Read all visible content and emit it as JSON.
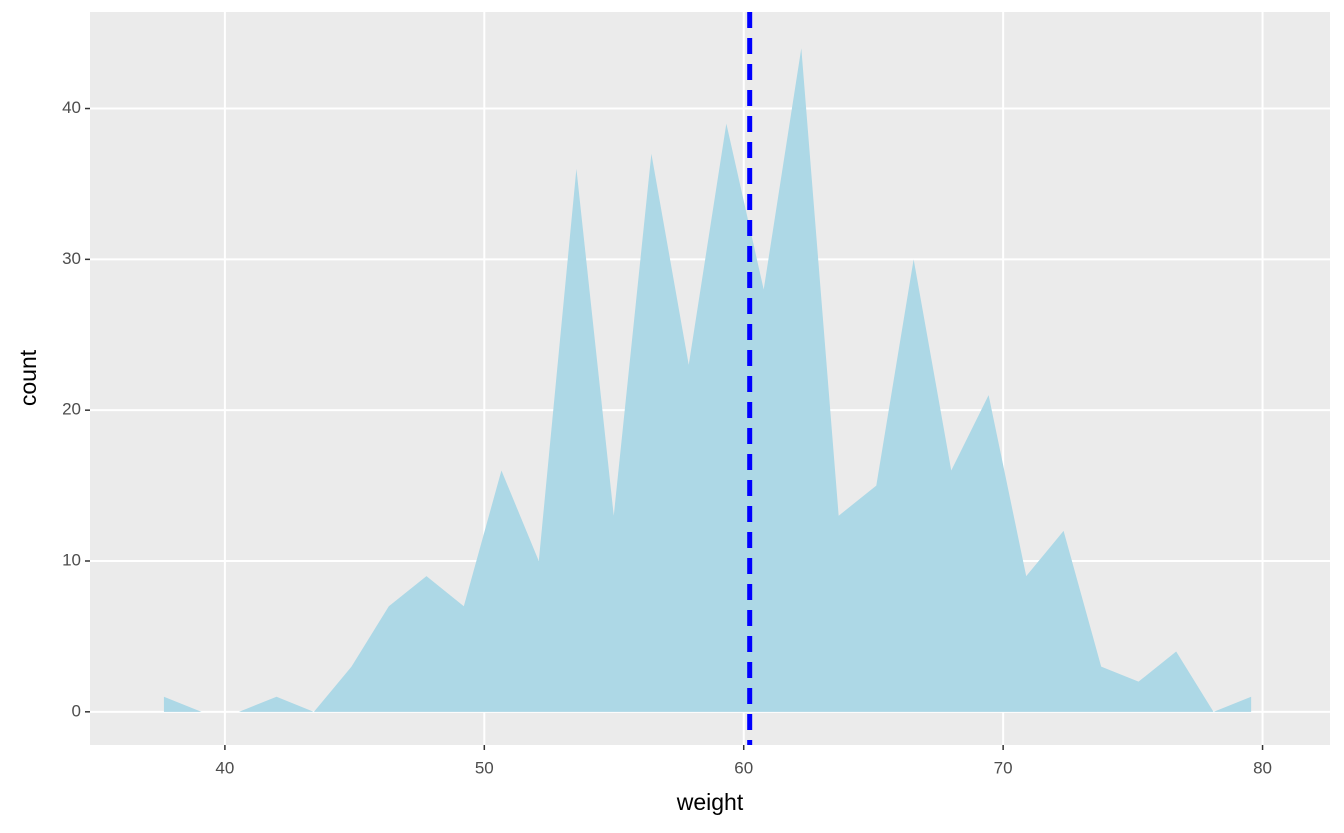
{
  "chart_data": {
    "type": "area",
    "x_label": "weight",
    "y_label": "count",
    "x": [
      37.65,
      39.1,
      40.54,
      41.99,
      43.43,
      44.88,
      46.32,
      47.77,
      49.21,
      50.66,
      52.1,
      53.55,
      54.99,
      56.44,
      57.88,
      59.33,
      60.77,
      62.22,
      63.66,
      65.11,
      66.55,
      68.0,
      69.44,
      70.89,
      72.33,
      73.78,
      75.22,
      76.67,
      78.11,
      79.56
    ],
    "values": [
      1,
      0,
      0,
      1,
      0,
      3,
      7,
      9,
      7,
      16,
      10,
      36,
      13,
      37,
      23,
      39,
      28,
      44,
      13,
      15,
      30,
      16,
      21,
      9,
      12,
      3,
      2,
      4,
      0,
      1
    ],
    "color": "#ADD8E6",
    "xlim": [
      34.8,
      82.6
    ],
    "ylim": [
      -2.2,
      46.4
    ],
    "xticks": [
      40,
      50,
      60,
      70,
      80
    ],
    "yticks": [
      0,
      10,
      20,
      30,
      40
    ],
    "grid": true,
    "vline": {
      "x": 60.23,
      "color": "#0000FF"
    }
  }
}
